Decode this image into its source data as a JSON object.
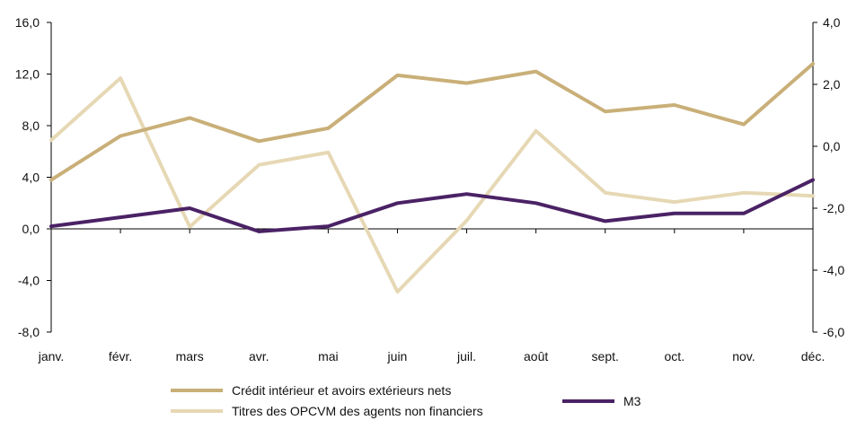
{
  "chart_data": {
    "type": "line",
    "categories": [
      "janv.",
      "févr.",
      "mars",
      "avr.",
      "mai",
      "juin",
      "juil.",
      "août",
      "sept.",
      "oct.",
      "nov.",
      "déc."
    ],
    "left_axis": {
      "ylim": [
        -8.0,
        16.0
      ],
      "ticks": [
        "16,0",
        "12,0",
        "8,0",
        "4,0",
        "0,0",
        "-4,0",
        "-8,0"
      ],
      "tick_values": [
        16,
        12,
        8,
        4,
        0,
        -4,
        -8
      ]
    },
    "right_axis": {
      "ylim": [
        -6.0,
        4.0
      ],
      "ticks": [
        "4,0",
        "2,0",
        "0,0",
        "-2,0",
        "-4,0",
        "-6,0"
      ],
      "tick_values": [
        4,
        2,
        0,
        -2,
        -4,
        -6
      ]
    },
    "series": [
      {
        "name": "Crédit intérieur et avoirs extérieurs nets",
        "axis": "left",
        "color": "#c9af78",
        "values": [
          3.8,
          7.2,
          8.6,
          6.8,
          7.8,
          11.9,
          11.3,
          12.2,
          9.1,
          9.6,
          8.1,
          12.8
        ]
      },
      {
        "name": "Titres des OPCVM des agents non financiers",
        "axis": "right",
        "color": "#e6d8b4",
        "values": [
          0.2,
          2.2,
          -2.6,
          -0.6,
          -0.2,
          -4.7,
          -2.4,
          0.5,
          -1.5,
          -1.8,
          -1.5,
          -1.6
        ]
      },
      {
        "name": "M3",
        "axis": "left",
        "color": "#4a2265",
        "values": [
          0.2,
          0.9,
          1.6,
          -0.2,
          0.2,
          2.0,
          2.7,
          2.0,
          0.6,
          1.2,
          1.2,
          3.8
        ]
      }
    ],
    "grid": false,
    "legend_placement": "bottom"
  }
}
